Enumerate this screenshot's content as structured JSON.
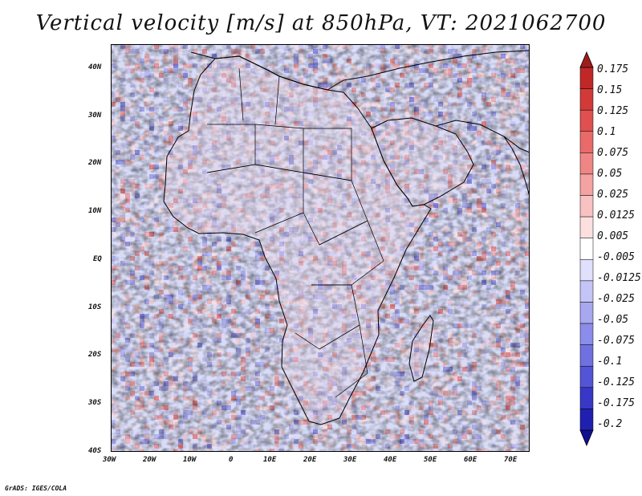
{
  "title": "Vertical velocity [m/s] at 850hPa, VT: 2021062700",
  "credit": "GrADS: IGES/COLA",
  "lat_labels": [
    "40N",
    "30N",
    "20N",
    "10N",
    "EQ",
    "10S",
    "20S",
    "30S",
    "40S"
  ],
  "lon_labels": [
    "30W",
    "20W",
    "10W",
    "0",
    "10E",
    "20E",
    "30E",
    "40E",
    "50E",
    "60E",
    "70E"
  ],
  "colorbar": {
    "labels": [
      "0.175",
      "0.15",
      "0.125",
      "0.1",
      "0.075",
      "0.05",
      "0.025",
      "0.0125",
      "0.005",
      "-0.005",
      "-0.0125",
      "-0.025",
      "-0.05",
      "-0.075",
      "-0.1",
      "-0.125",
      "-0.175",
      "-0.2"
    ],
    "colors": [
      "#a01c1c",
      "#c02828",
      "#d23a3a",
      "#e05050",
      "#e86a6a",
      "#ef8686",
      "#f4a2a2",
      "#f8c2c2",
      "#fce0e0",
      "#ffffff",
      "#e0e0fc",
      "#c4c4f6",
      "#a8a8f0",
      "#8c8cea",
      "#7070e0",
      "#5454d6",
      "#3838c6",
      "#2020b0",
      "#101090"
    ]
  },
  "map": {
    "background": "#d9dcf6",
    "land_tint": "#e3d6ea",
    "extent": {
      "lon_min": -30,
      "lon_max": 75,
      "lat_min": -40,
      "lat_max": 45
    }
  }
}
